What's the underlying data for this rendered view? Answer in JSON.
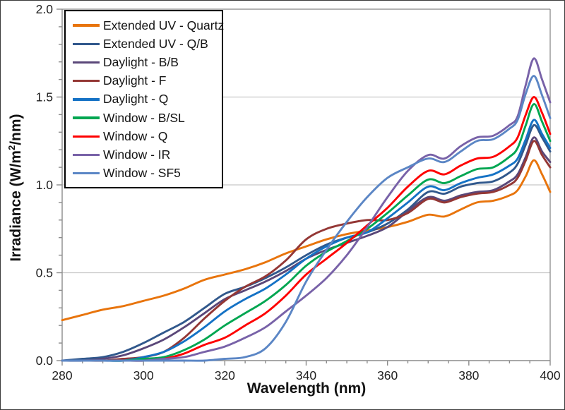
{
  "chart_data": {
    "type": "line",
    "title": "",
    "xlabel": "Wavelength (nm)",
    "ylabel": "Irradiance (W/m²/nm)",
    "xlim": [
      280,
      400
    ],
    "ylim": [
      0.0,
      2.0
    ],
    "xticks": [
      {
        "v": 280,
        "label": "280"
      },
      {
        "v": 300,
        "label": "300"
      },
      {
        "v": 320,
        "label": "320"
      },
      {
        "v": 340,
        "label": "340"
      },
      {
        "v": 360,
        "label": "360"
      },
      {
        "v": 380,
        "label": "380"
      },
      {
        "v": 400,
        "label": "400"
      }
    ],
    "yticks": [
      {
        "v": 0.0,
        "label": "0.0"
      },
      {
        "v": 0.5,
        "label": "0.5"
      },
      {
        "v": 1.0,
        "label": "1.0"
      },
      {
        "v": 1.5,
        "label": "1.5"
      },
      {
        "v": 2.0,
        "label": "2.0"
      }
    ],
    "x_minor_step": 5,
    "y_minor_step": 0.1,
    "grid": "horizontal-major",
    "legend_position": "top-left-inside",
    "colors": {
      "gridline": "#c7c7c7",
      "axis": "#8c8c8c",
      "tick_text": "#1f1f1f",
      "legend_border": "#000000"
    },
    "x": [
      280,
      285,
      290,
      295,
      300,
      305,
      310,
      315,
      320,
      325,
      330,
      335,
      340,
      345,
      350,
      355,
      360,
      365,
      370,
      374,
      378,
      382,
      386,
      390,
      392,
      394,
      396,
      398,
      400
    ],
    "series": [
      {
        "name": "Extended UV - Quartz",
        "color": "#E8740C",
        "values": [
          0.23,
          0.26,
          0.29,
          0.31,
          0.34,
          0.37,
          0.41,
          0.46,
          0.49,
          0.52,
          0.56,
          0.61,
          0.65,
          0.69,
          0.72,
          0.74,
          0.76,
          0.79,
          0.83,
          0.82,
          0.86,
          0.9,
          0.91,
          0.94,
          0.97,
          1.05,
          1.14,
          1.06,
          0.96
        ]
      },
      {
        "name": "Extended UV - Q/B",
        "color": "#31588C",
        "values": [
          0.0,
          0.01,
          0.02,
          0.05,
          0.1,
          0.16,
          0.22,
          0.3,
          0.38,
          0.42,
          0.47,
          0.53,
          0.6,
          0.66,
          0.7,
          0.73,
          0.78,
          0.86,
          0.96,
          0.95,
          0.99,
          1.01,
          1.02,
          1.07,
          1.12,
          1.23,
          1.34,
          1.27,
          1.19
        ]
      },
      {
        "name": "Daylight - B/B",
        "color": "#5A4779",
        "values": [
          0.0,
          0.0,
          0.01,
          0.03,
          0.07,
          0.12,
          0.19,
          0.27,
          0.35,
          0.4,
          0.45,
          0.51,
          0.58,
          0.63,
          0.67,
          0.71,
          0.76,
          0.85,
          0.93,
          0.91,
          0.94,
          0.96,
          0.97,
          1.02,
          1.06,
          1.16,
          1.27,
          1.19,
          1.13
        ]
      },
      {
        "name": "Daylight - F",
        "color": "#943735",
        "values": [
          0.0,
          0.0,
          0.0,
          0.01,
          0.02,
          0.05,
          0.13,
          0.24,
          0.34,
          0.42,
          0.48,
          0.57,
          0.69,
          0.75,
          0.78,
          0.8,
          0.8,
          0.84,
          0.92,
          0.9,
          0.93,
          0.95,
          0.96,
          1.0,
          1.04,
          1.14,
          1.25,
          1.17,
          1.1
        ]
      },
      {
        "name": "Daylight - Q",
        "color": "#1572C5",
        "values": [
          0.0,
          0.0,
          0.0,
          0.0,
          0.02,
          0.05,
          0.11,
          0.19,
          0.28,
          0.35,
          0.41,
          0.49,
          0.58,
          0.65,
          0.7,
          0.73,
          0.81,
          0.9,
          0.99,
          0.97,
          1.01,
          1.04,
          1.06,
          1.11,
          1.15,
          1.26,
          1.37,
          1.29,
          1.21
        ]
      },
      {
        "name": "Window - B/SL",
        "color": "#00A651",
        "values": [
          0.0,
          0.0,
          0.0,
          0.0,
          0.01,
          0.02,
          0.06,
          0.12,
          0.2,
          0.27,
          0.34,
          0.43,
          0.54,
          0.62,
          0.68,
          0.75,
          0.84,
          0.94,
          1.03,
          1.01,
          1.05,
          1.09,
          1.1,
          1.16,
          1.21,
          1.34,
          1.46,
          1.36,
          1.25
        ]
      },
      {
        "name": "Window - Q",
        "color": "#FE0000",
        "values": [
          0.0,
          0.0,
          0.0,
          0.0,
          0.0,
          0.01,
          0.04,
          0.09,
          0.13,
          0.2,
          0.27,
          0.37,
          0.49,
          0.58,
          0.67,
          0.77,
          0.87,
          0.99,
          1.08,
          1.06,
          1.11,
          1.15,
          1.16,
          1.22,
          1.27,
          1.4,
          1.5,
          1.41,
          1.29
        ]
      },
      {
        "name": "Window - IR",
        "color": "#7862A8",
        "values": [
          0.0,
          0.0,
          0.0,
          0.0,
          0.0,
          0.01,
          0.02,
          0.05,
          0.08,
          0.13,
          0.19,
          0.28,
          0.37,
          0.47,
          0.6,
          0.76,
          0.93,
          1.08,
          1.17,
          1.15,
          1.22,
          1.27,
          1.28,
          1.34,
          1.39,
          1.57,
          1.72,
          1.6,
          1.47
        ]
      },
      {
        "name": "Window - SF5",
        "color": "#5B86C5",
        "values": [
          0.0,
          0.0,
          0.0,
          0.0,
          0.0,
          0.0,
          0.0,
          0.0,
          0.01,
          0.02,
          0.07,
          0.22,
          0.45,
          0.63,
          0.79,
          0.93,
          1.04,
          1.1,
          1.15,
          1.13,
          1.19,
          1.25,
          1.26,
          1.32,
          1.37,
          1.52,
          1.62,
          1.51,
          1.38
        ]
      }
    ]
  }
}
